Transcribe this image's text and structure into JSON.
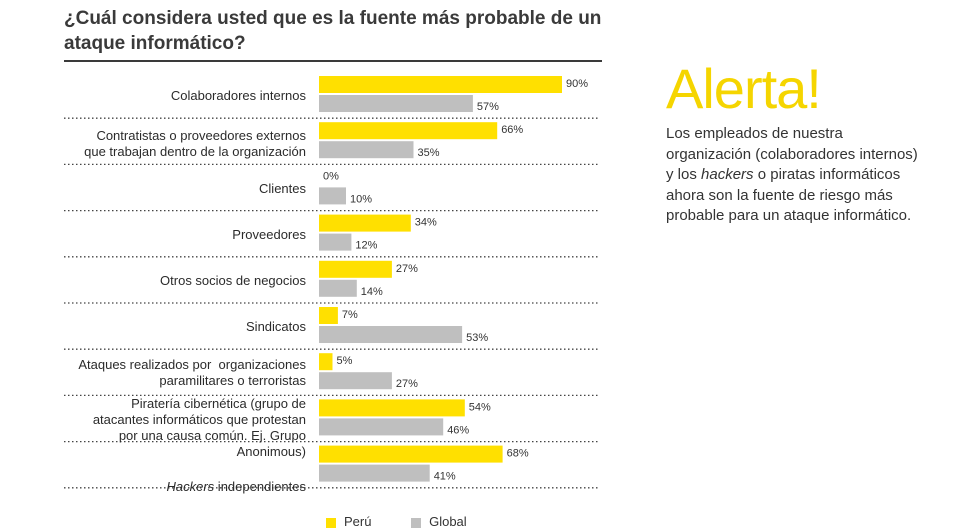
{
  "title": "¿Cuál considera usted que es la fuente más probable de un ataque informático?",
  "legend": {
    "peru": "Perú",
    "global": "Global"
  },
  "colors": {
    "peru": "#FFE000",
    "global": "#BFBFBF"
  },
  "side": {
    "heading": "Alerta!",
    "text_1": "Los empleados de nuestra organización (colaboradores internos) y los ",
    "text_em": "hackers",
    "text_2": " o piratas informáticos ahora son la fuente de riesgo más probable para un ataque informático."
  },
  "chart_data": {
    "type": "bar",
    "orientation": "horizontal",
    "title": "¿Cuál considera usted que es la fuente más probable de un ataque informático?",
    "categories": [
      "Colaboradores internos",
      "Contratistas o proveedores externos que trabajan dentro de la organización",
      "Clientes",
      "Proveedores",
      "Otros socios de negocios",
      "Sindicatos",
      "Ataques realizados por organizaciones paramilitares o terroristas",
      "Piratería cibernética (grupo de atacantes informáticos que protestan por una causa común. Ej. Grupo Anonimous)",
      "Hackers independientes"
    ],
    "series": [
      {
        "name": "Perú",
        "values": [
          90,
          66,
          0,
          34,
          27,
          7,
          5,
          54,
          68
        ],
        "labels": [
          "90%",
          "66%",
          "0%",
          "34%",
          "27%",
          "7%",
          "5%",
          "54%",
          "68%"
        ]
      },
      {
        "name": "Global",
        "values": [
          57,
          35,
          10,
          12,
          14,
          53,
          27,
          46,
          41
        ],
        "labels": [
          "57%",
          "35%",
          "10%",
          "12%",
          "14%",
          "53%",
          "27%",
          "46%",
          "41%"
        ]
      }
    ],
    "xlim": [
      0,
      100
    ],
    "legend_position": "bottom"
  }
}
